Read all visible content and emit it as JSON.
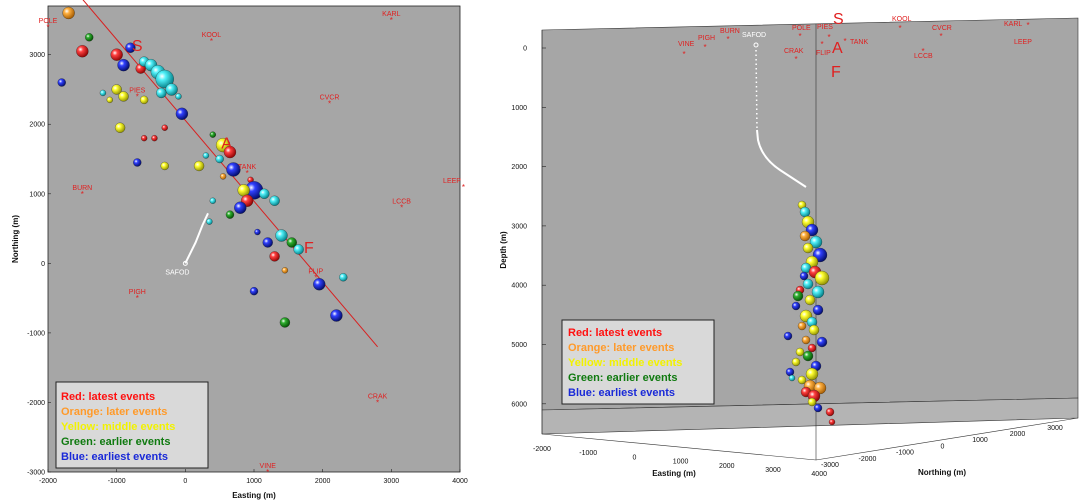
{
  "chart_data": [
    {
      "type": "scatter",
      "xlabel": "Easting (m)",
      "ylabel": "Northing (m)",
      "xlim": [
        -2000,
        4000
      ],
      "ylim": [
        -3000,
        3700
      ],
      "xticks": [
        -2000,
        -1000,
        0,
        1000,
        2000,
        3000,
        4000
      ],
      "yticks": [
        -3000,
        -2000,
        -1000,
        0,
        1000,
        2000,
        3000
      ],
      "background": "#a6a6a6",
      "stations": [
        {
          "name": "POLE",
          "x": -2000,
          "y": 3400
        },
        {
          "name": "KOOL",
          "x": 380,
          "y": 3200
        },
        {
          "name": "KARL",
          "x": 3000,
          "y": 3500
        },
        {
          "name": "CVCR",
          "x": 2100,
          "y": 2300
        },
        {
          "name": "LEEP",
          "x": 4050,
          "y": 1100
        },
        {
          "name": "PIES",
          "x": -700,
          "y": 2400
        },
        {
          "name": "TANK",
          "x": 900,
          "y": 1300
        },
        {
          "name": "BURN",
          "x": -1500,
          "y": 1000
        },
        {
          "name": "LCCB",
          "x": 3150,
          "y": 800
        },
        {
          "name": "PIGH",
          "x": -700,
          "y": -500
        },
        {
          "name": "FLIP",
          "x": 1900,
          "y": -200
        },
        {
          "name": "CRAK",
          "x": 2800,
          "y": -2000
        },
        {
          "name": "VINE",
          "x": 1200,
          "y": -3000
        }
      ],
      "segment_letters": [
        {
          "label": "S",
          "x": -700,
          "y": 3050
        },
        {
          "label": "A",
          "x": 600,
          "y": 1650
        },
        {
          "label": "F",
          "x": 1800,
          "y": 150
        }
      ],
      "fault_trace": [
        [
          -1500,
          3800
        ],
        [
          2800,
          -1200
        ]
      ],
      "borehole_label": "SAFOD",
      "borehole_path": [
        [
          0,
          0
        ],
        [
          150,
          300
        ],
        [
          250,
          550
        ],
        [
          330,
          720
        ]
      ],
      "events": [
        {
          "x": -1700,
          "y": 3600,
          "r": 6,
          "c": "orange"
        },
        {
          "x": -1500,
          "y": 3050,
          "r": 6,
          "c": "red"
        },
        {
          "x": -1400,
          "y": 3250,
          "r": 4,
          "c": "green"
        },
        {
          "x": -1000,
          "y": 3000,
          "r": 6,
          "c": "red"
        },
        {
          "x": -900,
          "y": 2850,
          "r": 6,
          "c": "blue"
        },
        {
          "x": -800,
          "y": 3100,
          "r": 5,
          "c": "blue"
        },
        {
          "x": -650,
          "y": 2800,
          "r": 5,
          "c": "red"
        },
        {
          "x": -600,
          "y": 2900,
          "r": 5,
          "c": "cyan"
        },
        {
          "x": -500,
          "y": 2850,
          "r": 6,
          "c": "cyan"
        },
        {
          "x": -400,
          "y": 2750,
          "r": 7,
          "c": "cyan"
        },
        {
          "x": -300,
          "y": 2650,
          "r": 9,
          "c": "cyan"
        },
        {
          "x": -200,
          "y": 2500,
          "r": 6,
          "c": "cyan"
        },
        {
          "x": -350,
          "y": 2450,
          "r": 5,
          "c": "cyan"
        },
        {
          "x": -1800,
          "y": 2600,
          "r": 4,
          "c": "blue"
        },
        {
          "x": -1200,
          "y": 2450,
          "r": 3,
          "c": "cyan"
        },
        {
          "x": -1000,
          "y": 2500,
          "r": 5,
          "c": "yellow"
        },
        {
          "x": -900,
          "y": 2400,
          "r": 5,
          "c": "yellow"
        },
        {
          "x": -1100,
          "y": 2350,
          "r": 3,
          "c": "yellow"
        },
        {
          "x": -600,
          "y": 2350,
          "r": 4,
          "c": "yellow"
        },
        {
          "x": -100,
          "y": 2400,
          "r": 3,
          "c": "cyan"
        },
        {
          "x": -50,
          "y": 2150,
          "r": 6,
          "c": "blue"
        },
        {
          "x": -950,
          "y": 1950,
          "r": 5,
          "c": "yellow"
        },
        {
          "x": -300,
          "y": 1950,
          "r": 3,
          "c": "red"
        },
        {
          "x": 400,
          "y": 1850,
          "r": 3,
          "c": "green"
        },
        {
          "x": 550,
          "y": 1700,
          "r": 7,
          "c": "yellow"
        },
        {
          "x": 650,
          "y": 1600,
          "r": 6,
          "c": "red"
        },
        {
          "x": 500,
          "y": 1500,
          "r": 4,
          "c": "cyan"
        },
        {
          "x": 300,
          "y": 1550,
          "r": 3,
          "c": "cyan"
        },
        {
          "x": -600,
          "y": 1800,
          "r": 3,
          "c": "red"
        },
        {
          "x": -450,
          "y": 1800,
          "r": 3,
          "c": "red"
        },
        {
          "x": -700,
          "y": 1450,
          "r": 4,
          "c": "blue"
        },
        {
          "x": -300,
          "y": 1400,
          "r": 4,
          "c": "yellow"
        },
        {
          "x": 200,
          "y": 1400,
          "r": 5,
          "c": "yellow"
        },
        {
          "x": 700,
          "y": 1350,
          "r": 7,
          "c": "blue"
        },
        {
          "x": 550,
          "y": 1250,
          "r": 3,
          "c": "orange"
        },
        {
          "x": 950,
          "y": 1200,
          "r": 3,
          "c": "red"
        },
        {
          "x": 1000,
          "y": 1050,
          "r": 9,
          "c": "blue"
        },
        {
          "x": 850,
          "y": 1050,
          "r": 6,
          "c": "yellow"
        },
        {
          "x": 1150,
          "y": 1000,
          "r": 5,
          "c": "cyan"
        },
        {
          "x": 1300,
          "y": 900,
          "r": 5,
          "c": "cyan"
        },
        {
          "x": 900,
          "y": 900,
          "r": 6,
          "c": "red"
        },
        {
          "x": 800,
          "y": 800,
          "r": 6,
          "c": "blue"
        },
        {
          "x": 650,
          "y": 700,
          "r": 4,
          "c": "green"
        },
        {
          "x": 400,
          "y": 900,
          "r": 3,
          "c": "cyan"
        },
        {
          "x": 350,
          "y": 600,
          "r": 3,
          "c": "cyan"
        },
        {
          "x": 1050,
          "y": 450,
          "r": 3,
          "c": "blue"
        },
        {
          "x": 1200,
          "y": 300,
          "r": 5,
          "c": "blue"
        },
        {
          "x": 1400,
          "y": 400,
          "r": 6,
          "c": "cyan"
        },
        {
          "x": 1550,
          "y": 300,
          "r": 5,
          "c": "green"
        },
        {
          "x": 1650,
          "y": 200,
          "r": 5,
          "c": "cyan"
        },
        {
          "x": 1300,
          "y": 100,
          "r": 5,
          "c": "red"
        },
        {
          "x": 1450,
          "y": -100,
          "r": 3,
          "c": "orange"
        },
        {
          "x": 1000,
          "y": -400,
          "r": 4,
          "c": "blue"
        },
        {
          "x": 1950,
          "y": -300,
          "r": 6,
          "c": "blue"
        },
        {
          "x": 2300,
          "y": -200,
          "r": 4,
          "c": "cyan"
        },
        {
          "x": 1450,
          "y": -850,
          "r": 5,
          "c": "green"
        },
        {
          "x": 2200,
          "y": -750,
          "r": 6,
          "c": "blue"
        }
      ]
    },
    {
      "type": "scatter",
      "projection": "3d",
      "xlabel": "Easting (m)",
      "ylabel": "Northing (m)",
      "zlabel": "Depth (m)",
      "zticks": [
        0,
        1000,
        2000,
        3000,
        4000,
        5000,
        6000
      ],
      "easting_ticks": [
        -2000,
        -1000,
        0,
        1000,
        2000,
        3000,
        4000
      ],
      "northing_ticks": [
        -3000,
        -2000,
        -1000,
        0,
        1000,
        2000,
        3000
      ],
      "background": "#a6a6a6",
      "stations": [
        "VINE",
        "PIGH",
        "BURN",
        "SAFOD",
        "POLE",
        "PIES",
        "CRAK",
        "FLIP",
        "TANK",
        "KOOL",
        "CVCR",
        "LCCB",
        "KARL",
        "LEEP"
      ],
      "segment_letters": [
        "S",
        "A",
        "F"
      ]
    }
  ],
  "legend": {
    "entries": [
      {
        "label": "Red: latest events",
        "color": "#ff1010"
      },
      {
        "label": "Orange: later events",
        "color": "#ff9a2a"
      },
      {
        "label": "Yellow: middle events",
        "color": "#f2f200"
      },
      {
        "label": "Green: earlier events",
        "color": "#107a10"
      },
      {
        "label": "Blue: earliest events",
        "color": "#1a2ad8"
      }
    ]
  },
  "colors": {
    "red": "#e52020",
    "orange": "#f39a26",
    "yellow": "#f0e800",
    "green": "#1d8a1d",
    "blue": "#1a26c8",
    "cyan": "#3ad8e0",
    "station": "#e02020"
  }
}
